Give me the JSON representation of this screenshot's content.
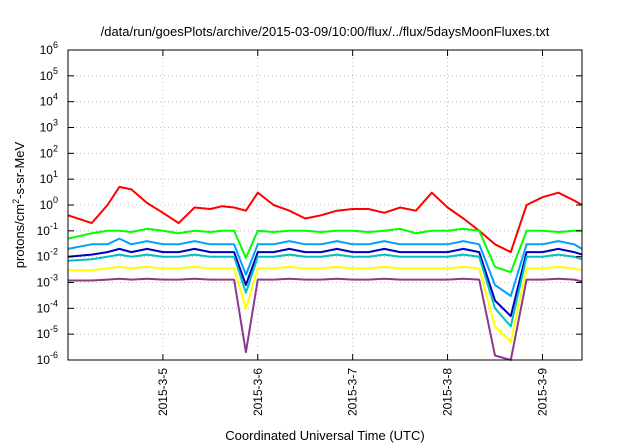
{
  "chart_data": {
    "type": "line",
    "title": "/data/run/goesPlots/archive/2015-03-09/10:00/flux/../flux/5daysMoonFluxes.txt",
    "xlabel": "Coordinated Universal Time (UTC)",
    "ylabel": {
      "base": "protons/cm",
      "sup": "2",
      "rest": "-s-sr-MeV"
    },
    "yscale": "log",
    "ylim": [
      1e-06,
      1000000.0
    ],
    "xlim": [
      "2015-03-04T00:00",
      "2015-03-09T10:00"
    ],
    "grid": true,
    "legend": "none",
    "x_ticks": [
      "2015-3-5",
      "2015-3-6",
      "2015-3-7",
      "2015-3-8",
      "2015-3-9"
    ],
    "y_ticks": [
      {
        "base": "10",
        "exp": "-6"
      },
      {
        "base": "10",
        "exp": "-5"
      },
      {
        "base": "10",
        "exp": "-4"
      },
      {
        "base": "10",
        "exp": "-3"
      },
      {
        "base": "10",
        "exp": "-2"
      },
      {
        "base": "10",
        "exp": "-1"
      },
      {
        "base": "10",
        "exp": "0"
      },
      {
        "base": "10",
        "exp": "1"
      },
      {
        "base": "10",
        "exp": "2"
      },
      {
        "base": "10",
        "exp": "3"
      },
      {
        "base": "10",
        "exp": "4"
      },
      {
        "base": "10",
        "exp": "5"
      },
      {
        "base": "10",
        "exp": "6"
      }
    ],
    "x": [
      "2015-03-04T00:00",
      "2015-03-04T06:00",
      "2015-03-04T10:00",
      "2015-03-04T13:00",
      "2015-03-04T16:00",
      "2015-03-04T20:00",
      "2015-03-05T00:00",
      "2015-03-05T04:00",
      "2015-03-05T08:00",
      "2015-03-05T12:00",
      "2015-03-05T15:00",
      "2015-03-05T18:00",
      "2015-03-05T21:00",
      "2015-03-06T00:00",
      "2015-03-06T04:00",
      "2015-03-06T08:00",
      "2015-03-06T12:00",
      "2015-03-06T16:00",
      "2015-03-06T20:00",
      "2015-03-07T00:00",
      "2015-03-07T04:00",
      "2015-03-07T08:00",
      "2015-03-07T12:00",
      "2015-03-07T16:00",
      "2015-03-07T20:00",
      "2015-03-08T00:00",
      "2015-03-08T04:00",
      "2015-03-08T08:00",
      "2015-03-08T12:00",
      "2015-03-08T16:00",
      "2015-03-08T20:00",
      "2015-03-09T00:00",
      "2015-03-09T04:00",
      "2015-03-09T08:00",
      "2015-03-09T10:00"
    ],
    "series": [
      {
        "color": "#ff0000",
        "values": [
          0.4,
          0.2,
          1.0,
          5.0,
          4.0,
          1.2,
          0.5,
          0.2,
          0.8,
          0.7,
          0.9,
          0.8,
          0.6,
          3.0,
          1.0,
          0.6,
          0.3,
          0.4,
          0.6,
          0.7,
          0.7,
          0.5,
          0.8,
          0.6,
          3.0,
          0.8,
          0.3,
          0.1,
          0.03,
          0.015,
          1.0,
          2.0,
          3.0,
          1.5,
          1.0
        ]
      },
      {
        "color": "#00ff00",
        "values": [
          0.05,
          0.08,
          0.1,
          0.1,
          0.09,
          0.12,
          0.1,
          0.08,
          0.1,
          0.09,
          0.1,
          0.1,
          0.009,
          0.1,
          0.09,
          0.1,
          0.1,
          0.09,
          0.1,
          0.1,
          0.09,
          0.1,
          0.12,
          0.08,
          0.1,
          0.1,
          0.12,
          0.1,
          0.004,
          0.0025,
          0.1,
          0.1,
          0.09,
          0.1,
          0.1
        ]
      },
      {
        "color": "#00a0ff",
        "values": [
          0.02,
          0.03,
          0.03,
          0.05,
          0.03,
          0.04,
          0.03,
          0.03,
          0.04,
          0.03,
          0.03,
          0.03,
          0.002,
          0.03,
          0.03,
          0.04,
          0.03,
          0.03,
          0.04,
          0.03,
          0.03,
          0.04,
          0.03,
          0.03,
          0.03,
          0.03,
          0.04,
          0.03,
          0.0008,
          0.0003,
          0.03,
          0.03,
          0.04,
          0.03,
          0.02
        ]
      },
      {
        "color": "#0000c0",
        "values": [
          0.01,
          0.012,
          0.015,
          0.02,
          0.015,
          0.02,
          0.015,
          0.015,
          0.02,
          0.015,
          0.015,
          0.015,
          0.0008,
          0.015,
          0.015,
          0.02,
          0.015,
          0.015,
          0.02,
          0.015,
          0.015,
          0.02,
          0.015,
          0.015,
          0.015,
          0.015,
          0.02,
          0.015,
          0.0002,
          5e-05,
          0.015,
          0.015,
          0.02,
          0.015,
          0.012
        ]
      },
      {
        "color": "#00c0c0",
        "values": [
          0.007,
          0.008,
          0.01,
          0.012,
          0.01,
          0.012,
          0.01,
          0.01,
          0.012,
          0.01,
          0.01,
          0.01,
          0.0004,
          0.01,
          0.01,
          0.012,
          0.01,
          0.01,
          0.012,
          0.01,
          0.01,
          0.012,
          0.01,
          0.01,
          0.01,
          0.01,
          0.012,
          0.01,
          0.0001,
          2e-05,
          0.01,
          0.01,
          0.012,
          0.01,
          0.008
        ]
      },
      {
        "color": "#ffff00",
        "values": [
          0.003,
          0.003,
          0.0035,
          0.004,
          0.0035,
          0.004,
          0.0035,
          0.0035,
          0.004,
          0.0035,
          0.0035,
          0.0035,
          0.0001,
          0.0035,
          0.0035,
          0.004,
          0.0035,
          0.0035,
          0.004,
          0.0035,
          0.0035,
          0.004,
          0.0035,
          0.0035,
          0.0035,
          0.0035,
          0.004,
          0.0035,
          2e-05,
          5e-06,
          0.0035,
          0.0035,
          0.004,
          0.0035,
          0.003
        ]
      },
      {
        "color": "#8b3a8b",
        "values": [
          0.0012,
          0.0012,
          0.0013,
          0.0014,
          0.0013,
          0.0014,
          0.0013,
          0.0013,
          0.0014,
          0.0013,
          0.0013,
          0.0013,
          2e-06,
          0.0013,
          0.0013,
          0.0014,
          0.0013,
          0.0013,
          0.0014,
          0.0013,
          0.0013,
          0.0014,
          0.0013,
          0.0013,
          0.0013,
          0.0013,
          0.0014,
          0.0013,
          1.5e-06,
          1e-06,
          0.0013,
          0.0013,
          0.0014,
          0.0013,
          0.0011
        ]
      }
    ]
  }
}
